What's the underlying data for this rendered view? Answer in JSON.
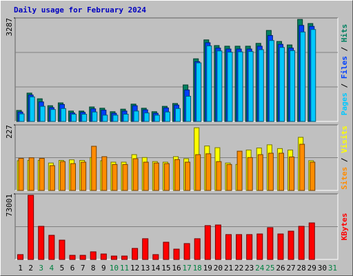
{
  "chart_data": [
    {
      "type": "bar",
      "title": "Daily usage for February 2024",
      "title_color": "#0000c0",
      "ylim": [
        0,
        3287
      ],
      "yticks": [
        3287
      ],
      "grid_divisions": 3,
      "legend_separator": " / ",
      "series": [
        {
          "name": "Hits",
          "color": "#008060",
          "values": [
            350,
            900,
            720,
            500,
            590,
            330,
            330,
            460,
            420,
            310,
            390,
            550,
            420,
            310,
            480,
            570,
            1160,
            1990,
            2590,
            2410,
            2390,
            2390,
            2390,
            2480,
            2890,
            2540,
            2430,
            3240,
            3110,
            null,
            null
          ]
        },
        {
          "name": "Files",
          "color": "#0040ff",
          "values": [
            300,
            840,
            620,
            440,
            540,
            270,
            290,
            400,
            360,
            260,
            330,
            500,
            370,
            260,
            430,
            520,
            1000,
            1900,
            2500,
            2330,
            2300,
            2300,
            2300,
            2390,
            2730,
            2450,
            2330,
            3050,
            3020,
            null,
            null
          ]
        },
        {
          "name": "Pages",
          "color": "#00c8ff",
          "values": [
            240,
            780,
            480,
            380,
            410,
            230,
            230,
            300,
            200,
            200,
            230,
            330,
            270,
            200,
            300,
            410,
            800,
            1860,
            2400,
            2240,
            2200,
            2210,
            2220,
            2280,
            2570,
            2350,
            2250,
            2840,
            2920,
            null,
            null
          ]
        }
      ]
    },
    {
      "type": "bar",
      "ylim": [
        0,
        227
      ],
      "yticks": [
        227
      ],
      "grid_divisions": 2,
      "legend_separator": " / ",
      "series": [
        {
          "name": "Visits",
          "color": "#ffff00",
          "values": [
            103,
            104,
            104,
            95,
            104,
            106,
            104,
            114,
            103,
            98,
            98,
            124,
            114,
            100,
            98,
            117,
            110,
            217,
            154,
            148,
            95,
            90,
            140,
            147,
            158,
            145,
            140,
            184,
            103,
            null,
            null
          ]
        },
        {
          "name": "Sites",
          "color": "#ff8c00",
          "values": [
            111,
            113,
            111,
            86,
            100,
            93,
            98,
            153,
            117,
            90,
            90,
            110,
            98,
            95,
            93,
            107,
            98,
            124,
            127,
            100,
            90,
            136,
            114,
            124,
            129,
            129,
            116,
            160,
            98,
            null,
            null
          ]
        }
      ]
    },
    {
      "type": "bar",
      "ylim": [
        0,
        73001
      ],
      "yticks": [
        73001
      ],
      "grid_divisions": 2,
      "categories": [
        "1",
        "2",
        "3",
        "4",
        "5",
        "6",
        "7",
        "8",
        "9",
        "10",
        "11",
        "12",
        "13",
        "14",
        "15",
        "16",
        "17",
        "18",
        "19",
        "20",
        "21",
        "22",
        "23",
        "24",
        "25",
        "26",
        "27",
        "28",
        "29",
        "30",
        "31"
      ],
      "weekend_indices": [
        2,
        3,
        9,
        10,
        16,
        17,
        23,
        24,
        30
      ],
      "weekend_color": "#008040",
      "label_color": "#000000",
      "series": [
        {
          "name": "KBytes",
          "color": "#ff0000",
          "values": [
            5400,
            71500,
            36900,
            26900,
            21500,
            4600,
            4600,
            8500,
            6100,
            3800,
            3800,
            12300,
            23100,
            5400,
            19200,
            11500,
            17700,
            23100,
            37700,
            38400,
            27700,
            27700,
            27700,
            28400,
            35400,
            28400,
            31500,
            36900,
            40700,
            null,
            null
          ]
        }
      ]
    }
  ]
}
